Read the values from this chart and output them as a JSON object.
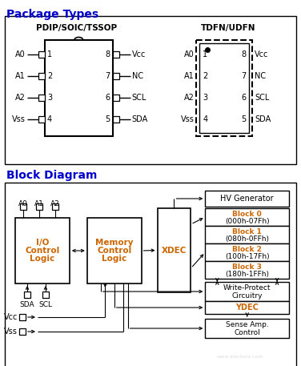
{
  "title_package": "Package Types",
  "title_block": "Block Diagram",
  "bg_color": "#ffffff",
  "title_color": "#0000cc",
  "orange_text": "#cc6600",
  "pdip_title": "PDIP/SOIC/TSSOP",
  "tdfn_title": "TDFN/UDFN",
  "left_pins": [
    [
      "A0",
      "1"
    ],
    [
      "A1",
      "2"
    ],
    [
      "A2",
      "3"
    ],
    [
      "Vss",
      "4"
    ]
  ],
  "right_pins": [
    [
      "8",
      "Vcc"
    ],
    [
      "7",
      "NC"
    ],
    [
      "6",
      "SCL"
    ],
    [
      "5",
      "SDA"
    ]
  ],
  "block_labels": [
    [
      "Block 0",
      "(000h-07Fh)"
    ],
    [
      "Block 1",
      "(080h-0FFh)"
    ],
    [
      "Block 2",
      "(100h-17Fh)"
    ],
    [
      "Block 3",
      "(180h-1FFh)"
    ]
  ]
}
